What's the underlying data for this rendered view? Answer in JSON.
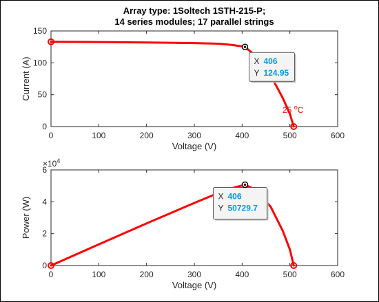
{
  "chart_data": [
    {
      "type": "line",
      "title_lines": [
        "Array type: 1Soltech 1STH-215-P;",
        "14 series modules; 17 parallel strings"
      ],
      "xlabel": "Voltage (V)",
      "ylabel": "Current (A)",
      "xlim": [
        0,
        600
      ],
      "ylim": [
        0,
        150
      ],
      "xticks": [
        "0",
        "100",
        "200",
        "300",
        "400",
        "500",
        "600"
      ],
      "yticks": [
        "0",
        "50",
        "100",
        "150"
      ],
      "series": [
        {
          "color": "#ff0000",
          "x": [
            0,
            100,
            200,
            300,
            350,
            380,
            406,
            430,
            460,
            485,
            500,
            508
          ],
          "y": [
            133,
            132.6,
            132,
            131,
            130,
            128,
            124.95,
            110,
            80,
            45,
            20,
            0
          ]
        }
      ],
      "markers": [
        {
          "x": 0,
          "y": 133
        },
        {
          "x": 508,
          "y": 0
        }
      ],
      "datatip": {
        "x_label": "X",
        "x_value": "406",
        "y_label": "Y",
        "y_value": "124.95",
        "x": 406,
        "y": 124.95
      },
      "annotation": {
        "prefix": "25 ",
        "sup": "o",
        "suffix": "C",
        "color": "#ff0000"
      },
      "grid": false
    },
    {
      "type": "line",
      "xlabel": "Voltage (V)",
      "ylabel": "Power (W)",
      "xlim": [
        0,
        600
      ],
      "ylim": [
        0,
        60000
      ],
      "xticks": [
        "0",
        "100",
        "200",
        "300",
        "400",
        "500",
        "600"
      ],
      "yticks": [
        "0",
        "2",
        "4",
        "6"
      ],
      "exponent": {
        "base": "×10",
        "power": "4"
      },
      "series": [
        {
          "color": "#ff0000",
          "x": [
            0,
            100,
            200,
            300,
            350,
            380,
            406,
            430,
            460,
            485,
            500,
            508
          ],
          "y": [
            0,
            13260,
            26400,
            39300,
            45500,
            48640,
            50729.7,
            47300,
            36800,
            21825,
            10000,
            0
          ]
        }
      ],
      "markers": [
        {
          "x": 0,
          "y": 0
        },
        {
          "x": 508,
          "y": 0
        }
      ],
      "datatip": {
        "x_label": "X",
        "x_value": "406",
        "y_label": "Y",
        "y_value": "50729.7",
        "x": 406,
        "y": 50729.7
      },
      "grid": false
    }
  ],
  "colors": {
    "curve": "#ff0000",
    "datatip_value": "#0099e5",
    "axis": "#262626"
  }
}
